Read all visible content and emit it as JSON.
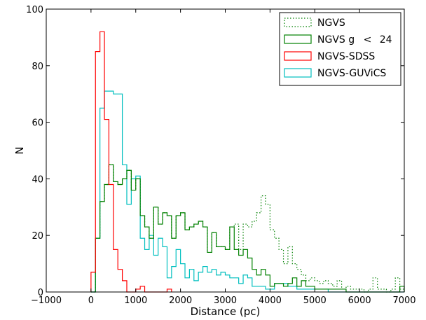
{
  "chart_data": {
    "type": "histogram-step",
    "xlabel": "Distance (pc)",
    "ylabel": "N",
    "xlim": [
      -1000,
      7000
    ],
    "ylim": [
      0,
      100
    ],
    "xticks": [
      -1000,
      0,
      1000,
      2000,
      3000,
      4000,
      5000,
      6000,
      7000
    ],
    "xtick_labels": [
      "−1000",
      "0",
      "1000",
      "2000",
      "3000",
      "4000",
      "5000",
      "6000",
      "7000"
    ],
    "yticks": [
      0,
      20,
      40,
      60,
      80,
      100
    ],
    "ytick_labels": [
      "0",
      "20",
      "40",
      "60",
      "80",
      "100"
    ],
    "grid": false,
    "legend_placement": "top-right",
    "series": [
      {
        "name": "NGVS",
        "color": "#008000",
        "style": "dotted",
        "x": [
          0,
          100,
          200,
          300,
          400,
          500,
          600,
          700,
          800,
          900,
          1000,
          1100,
          1200,
          1300,
          1400,
          1500,
          1600,
          1700,
          1800,
          1900,
          2000,
          2100,
          2200,
          2300,
          2400,
          2500,
          2600,
          2700,
          2800,
          2900,
          3000,
          3100,
          3200,
          3300,
          3400,
          3500,
          3600,
          3700,
          3800,
          3900,
          4000,
          4100,
          4200,
          4300,
          4400,
          4500,
          4600,
          4700,
          4800,
          4900,
          5000,
          5100,
          5200,
          5300,
          5400,
          5500,
          5600,
          5700,
          5800,
          5900,
          6000,
          6100,
          6200,
          6300,
          6400,
          6500,
          6600,
          6700,
          6800,
          6900
        ],
        "y": [
          0,
          19,
          32,
          38,
          45,
          39,
          38,
          40,
          43,
          36,
          40,
          27,
          23,
          19,
          30,
          24,
          28,
          27,
          19,
          27,
          28,
          22,
          23,
          24,
          25,
          23,
          14,
          21,
          16,
          16,
          15,
          23,
          24,
          15,
          24,
          23,
          25,
          28,
          34,
          31,
          22,
          19,
          15,
          10,
          16,
          10,
          8,
          6,
          4,
          5,
          4,
          3,
          4,
          3,
          2,
          4,
          1,
          2,
          1,
          1,
          1,
          0,
          1,
          5,
          1,
          1,
          0,
          1,
          5,
          1
        ]
      },
      {
        "name": "NGVS g < 24",
        "legend_main": "NGVS g",
        "legend_op": "<",
        "legend_num": "24",
        "color": "#008000",
        "style": "solid",
        "x": [
          0,
          100,
          200,
          300,
          400,
          500,
          600,
          700,
          800,
          900,
          1000,
          1100,
          1200,
          1300,
          1400,
          1500,
          1600,
          1700,
          1800,
          1900,
          2000,
          2100,
          2200,
          2300,
          2400,
          2500,
          2600,
          2700,
          2800,
          2900,
          3000,
          3100,
          3200,
          3300,
          3400,
          3500,
          3600,
          3700,
          3800,
          3900,
          4000,
          4100,
          4200,
          4300,
          4400,
          4500,
          4600,
          4700,
          4800,
          4900,
          5000,
          5100,
          5200,
          5300,
          5400,
          5500,
          5600,
          5700,
          5800,
          5900,
          6000,
          6100,
          6200,
          6300,
          6400,
          6500,
          6600,
          6700,
          6800,
          6900
        ],
        "y": [
          0,
          19,
          32,
          38,
          45,
          39,
          38,
          40,
          43,
          36,
          40,
          27,
          23,
          19,
          30,
          24,
          28,
          27,
          19,
          27,
          28,
          22,
          23,
          24,
          25,
          23,
          14,
          21,
          16,
          16,
          15,
          23,
          15,
          13,
          15,
          12,
          8,
          6,
          8,
          6,
          2,
          3,
          3,
          2,
          3,
          5,
          2,
          4,
          2,
          2,
          1,
          1,
          1,
          1,
          1,
          1,
          1,
          0,
          0,
          0,
          0,
          0,
          0,
          0,
          0,
          0,
          0,
          0,
          0,
          2
        ]
      },
      {
        "name": "NGVS-SDSS",
        "color": "#ff0000",
        "style": "solid",
        "x": [
          0,
          100,
          200,
          300,
          400,
          500,
          600,
          700,
          800,
          900,
          1000,
          1100,
          1200,
          1300,
          1400,
          1500,
          1600,
          1700
        ],
        "y": [
          7,
          85,
          92,
          61,
          38,
          15,
          8,
          4,
          0,
          0,
          1,
          2,
          0,
          0,
          0,
          0,
          0,
          1
        ]
      },
      {
        "name": "NGVS-GUVICS",
        "legend_label": "NGVS-GUViCS",
        "color": "#00bfbf",
        "style": "solid",
        "x": [
          0,
          100,
          200,
          300,
          400,
          500,
          600,
          700,
          800,
          900,
          1000,
          1100,
          1200,
          1300,
          1400,
          1500,
          1600,
          1700,
          1800,
          1900,
          2000,
          2100,
          2200,
          2300,
          2400,
          2500,
          2600,
          2700,
          2800,
          2900,
          3000,
          3100,
          3200,
          3300,
          3400,
          3500,
          3600,
          3700,
          3800,
          3900,
          4000,
          4100,
          4200,
          4300,
          4400,
          4500,
          4600,
          4700,
          4800,
          4900,
          5000,
          5100,
          5200,
          5300,
          5400,
          5500,
          5600,
          5700,
          5800,
          5900,
          6000,
          6100,
          6200,
          6300,
          6400,
          6500,
          6600,
          6700,
          6800,
          6900
        ],
        "y": [
          0,
          19,
          65,
          71,
          71,
          70,
          70,
          45,
          31,
          40,
          41,
          19,
          15,
          20,
          13,
          19,
          16,
          5,
          9,
          15,
          10,
          5,
          8,
          4,
          7,
          9,
          7,
          8,
          6,
          7,
          6,
          5,
          5,
          3,
          6,
          5,
          2,
          2,
          2,
          1,
          1,
          3,
          3,
          3,
          2,
          2,
          1,
          1,
          1,
          1,
          1,
          1,
          1,
          0,
          0,
          0,
          0,
          0,
          0,
          0,
          0,
          0,
          0,
          0,
          0,
          0,
          0,
          0,
          0,
          0
        ]
      }
    ]
  }
}
